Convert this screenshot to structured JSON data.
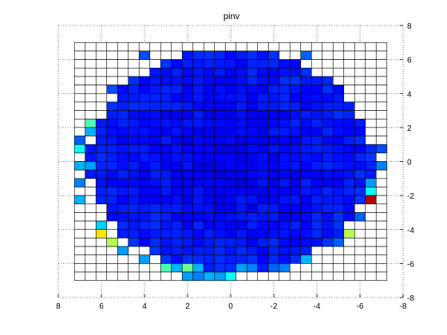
{
  "chart_data": {
    "type": "heatmap",
    "title": "pinv",
    "xlabel": "",
    "ylabel": "",
    "xlim": [
      8,
      -8
    ],
    "ylim": [
      -8,
      8
    ],
    "x_reversed": true,
    "x_ticks": [
      8,
      6,
      4,
      2,
      0,
      -2,
      -4,
      -6,
      -8
    ],
    "y_ticks": [
      8,
      6,
      4,
      2,
      0,
      -2,
      -4,
      -6,
      -8
    ],
    "x_tick_labels": [
      "8",
      "6",
      "4",
      "2",
      "0",
      "-2",
      "-4",
      "-6",
      "-8"
    ],
    "y_tick_labels": [
      "8",
      "6",
      "4",
      "2",
      "0",
      "-2",
      "-4",
      "-6",
      "-8"
    ],
    "grid": "dotted",
    "colormap": "jet",
    "cell_size": 0.5,
    "x_start": 7.0,
    "y_start": 6.75,
    "circle_center": [
      0,
      0
    ],
    "circle_radius": 6.6,
    "base_level": 0.08,
    "base_variation": 0.05,
    "out_of_mask_color": "#ffffff",
    "hot_cells": [
      {
        "x": 6.5,
        "y": 2.25,
        "value": 0.45
      },
      {
        "x": 6.5,
        "y": 1.75,
        "value": 0.3
      },
      {
        "x": 7.0,
        "y": 1.25,
        "value": 0.22
      },
      {
        "x": 7.0,
        "y": 0.75,
        "value": 0.38
      },
      {
        "x": 7.0,
        "y": -0.25,
        "value": 0.3
      },
      {
        "x": 6.5,
        "y": -0.25,
        "value": 0.28
      },
      {
        "x": 7.0,
        "y": -1.25,
        "value": 0.25
      },
      {
        "x": 7.0,
        "y": -2.25,
        "value": 0.3
      },
      {
        "x": 6.0,
        "y": -3.75,
        "value": 0.33
      },
      {
        "x": 6.0,
        "y": -4.25,
        "value": 0.65
      },
      {
        "x": 5.5,
        "y": -4.75,
        "value": 0.55
      },
      {
        "x": 5.0,
        "y": -5.25,
        "value": 0.28
      },
      {
        "x": 4.0,
        "y": -5.75,
        "value": 0.28
      },
      {
        "x": 3.0,
        "y": -6.25,
        "value": 0.45
      },
      {
        "x": 2.5,
        "y": -6.25,
        "value": 0.3
      },
      {
        "x": 2.0,
        "y": -6.25,
        "value": 0.48
      },
      {
        "x": 2.0,
        "y": -6.75,
        "value": 0.28
      },
      {
        "x": 1.5,
        "y": -6.25,
        "value": 0.3
      },
      {
        "x": 1.5,
        "y": -6.75,
        "value": 0.25
      },
      {
        "x": 1.0,
        "y": -6.75,
        "value": 0.3
      },
      {
        "x": 0.5,
        "y": -6.75,
        "value": 0.28
      },
      {
        "x": 0.0,
        "y": -6.75,
        "value": 0.38
      },
      {
        "x": -0.5,
        "y": -6.25,
        "value": 0.28
      },
      {
        "x": -1.0,
        "y": -6.25,
        "value": 0.25
      },
      {
        "x": -2.0,
        "y": -6.25,
        "value": 0.22
      },
      {
        "x": -2.5,
        "y": -6.25,
        "value": 0.25
      },
      {
        "x": -3.5,
        "y": -5.75,
        "value": 0.3
      },
      {
        "x": -5.0,
        "y": -4.75,
        "value": 0.22
      },
      {
        "x": -5.5,
        "y": -4.25,
        "value": 0.55
      },
      {
        "x": -6.0,
        "y": -3.25,
        "value": 0.22
      },
      {
        "x": -6.5,
        "y": -1.75,
        "value": 0.38
      },
      {
        "x": -6.5,
        "y": -1.25,
        "value": 0.28
      },
      {
        "x": -6.5,
        "y": -2.25,
        "value": 0.95
      },
      {
        "x": -7.0,
        "y": -0.25,
        "value": 0.25
      },
      {
        "x": -7.0,
        "y": 0.75,
        "value": 0.2
      },
      {
        "x": -3.5,
        "y": 6.25,
        "value": 0.22
      },
      {
        "x": 4.0,
        "y": 6.25,
        "value": 0.2
      },
      {
        "x": 5.5,
        "y": 4.25,
        "value": 0.2
      }
    ]
  }
}
